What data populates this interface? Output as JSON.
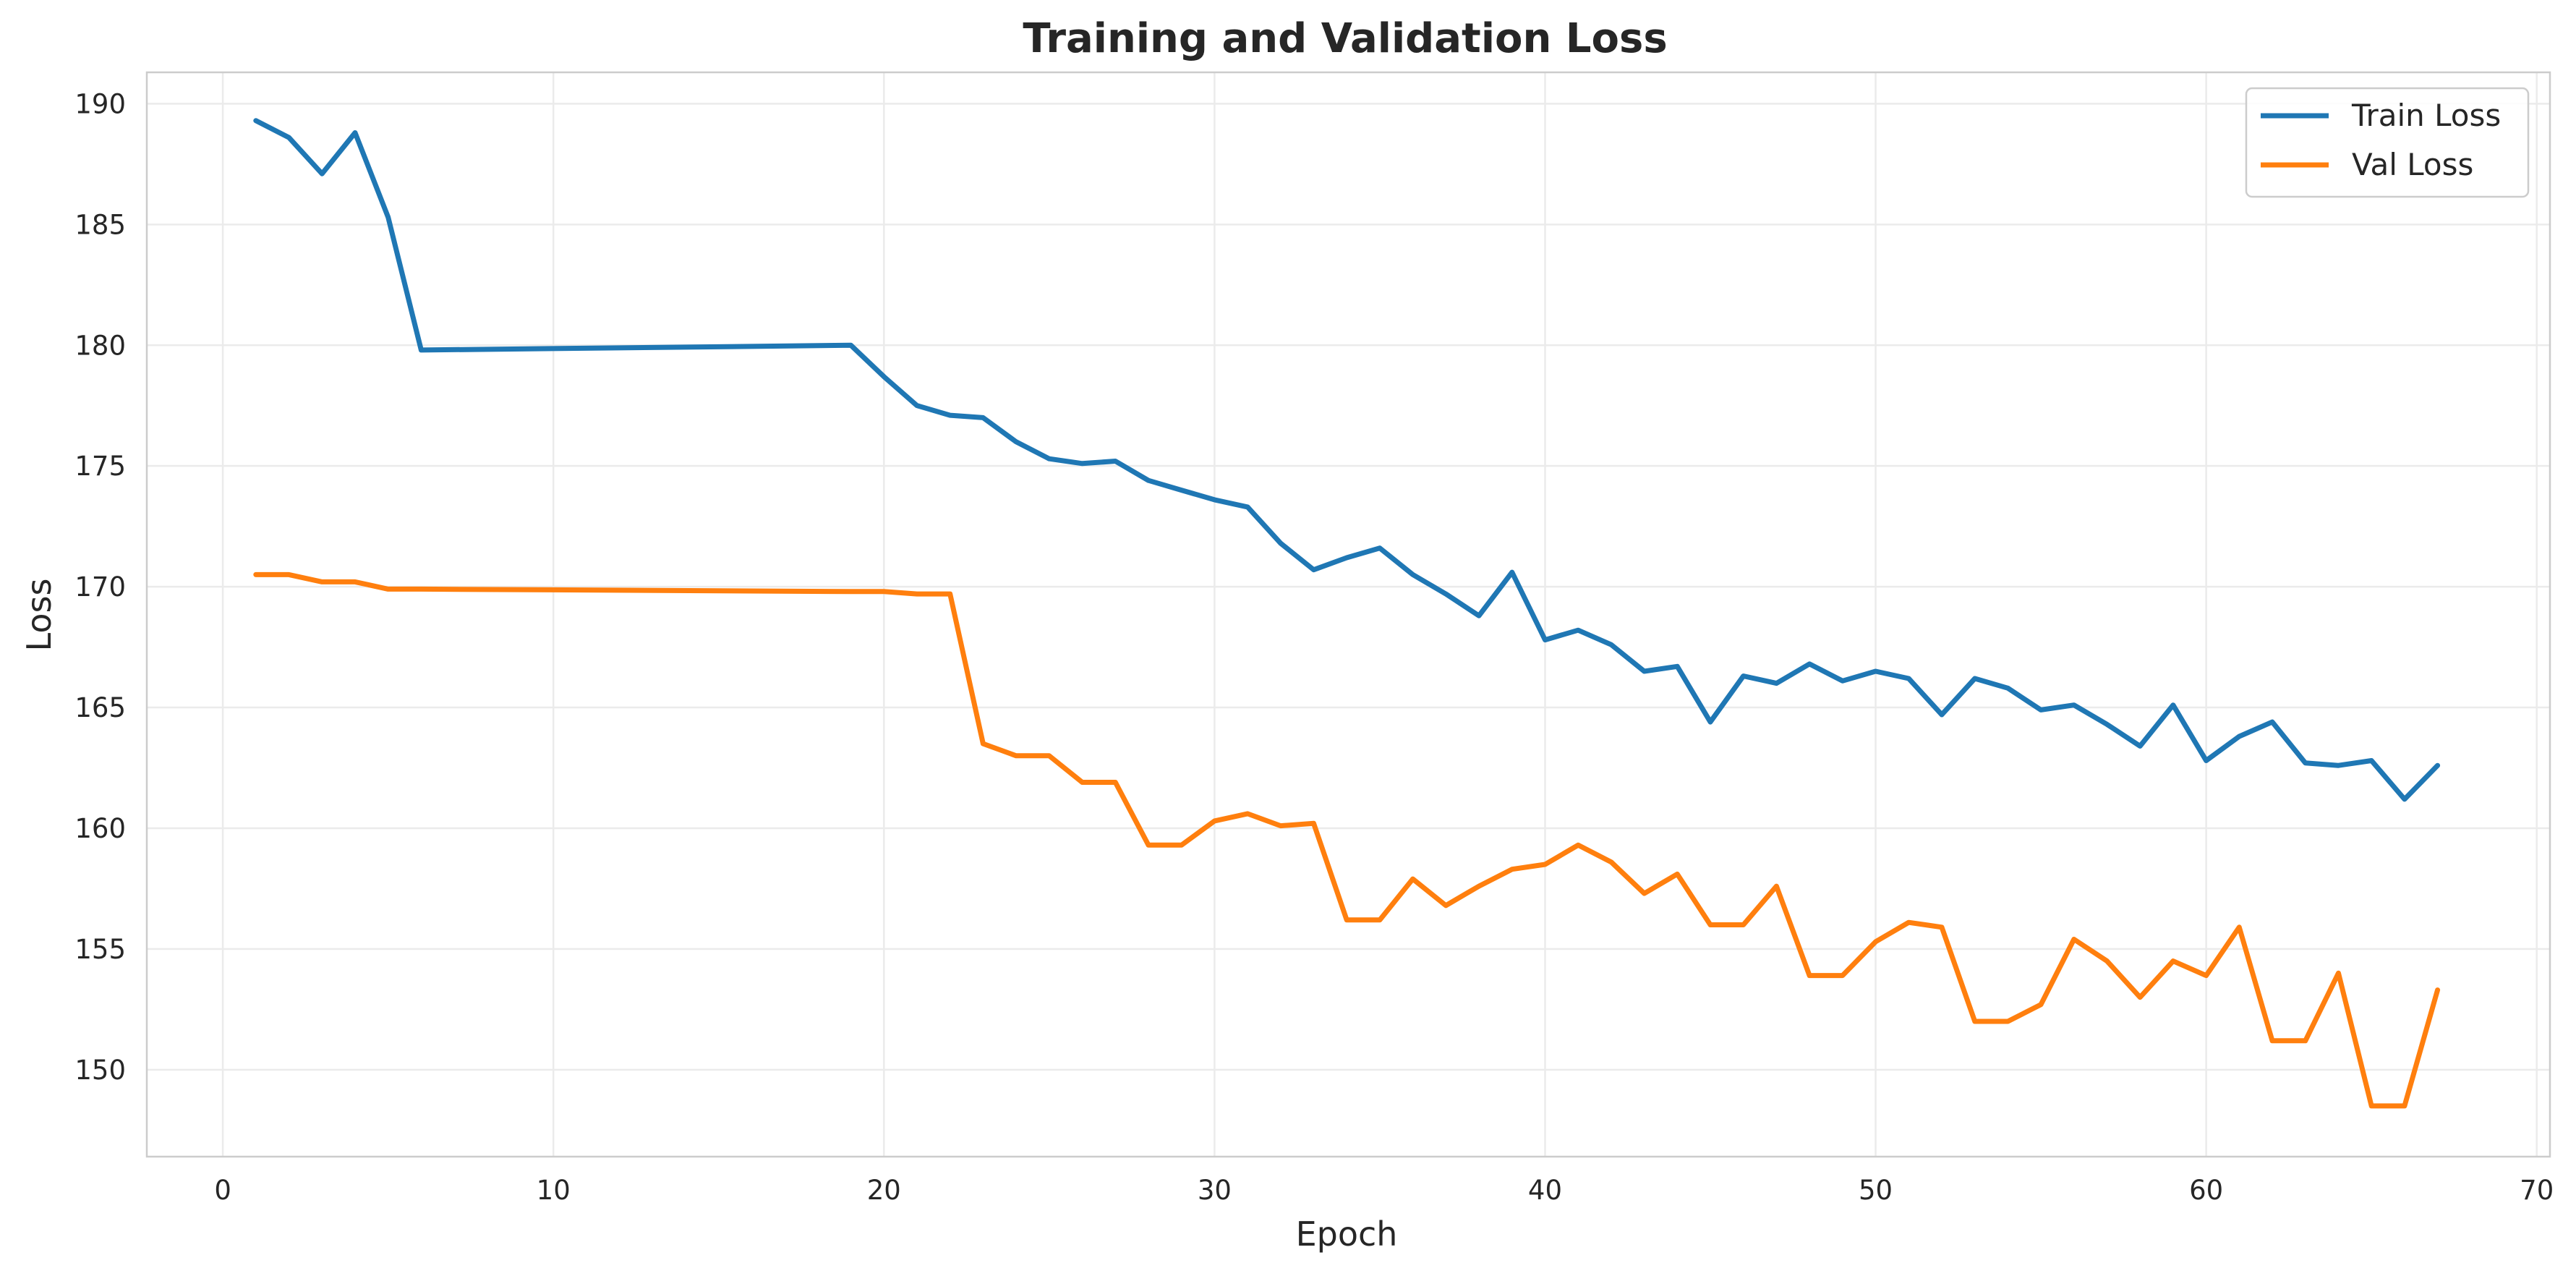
{
  "chart_data": {
    "type": "line",
    "title": "Training and Validation Loss",
    "xlabel": "Epoch",
    "ylabel": "Loss",
    "xlim": [
      -2.3,
      70.4
    ],
    "ylim": [
      146.4,
      191.3
    ],
    "xticks": [
      0,
      10,
      20,
      30,
      40,
      50,
      60,
      70
    ],
    "yticks": [
      150,
      155,
      160,
      165,
      170,
      175,
      180,
      185,
      190
    ],
    "grid": true,
    "legend_position": "top-right",
    "x": [
      1,
      2,
      3,
      4,
      5,
      6,
      19,
      20,
      21,
      22,
      23,
      24,
      25,
      26,
      27,
      28,
      29,
      30,
      31,
      32,
      33,
      34,
      35,
      36,
      37,
      38,
      39,
      40,
      41,
      42,
      43,
      44,
      45,
      46,
      47,
      48,
      49,
      50,
      51,
      52,
      53,
      54,
      55,
      56,
      57,
      58,
      59,
      60,
      61,
      62,
      63,
      64,
      65,
      66,
      67
    ],
    "series": [
      {
        "name": "Train Loss",
        "color": "#1f77b4",
        "values": [
          189.3,
          188.6,
          187.1,
          188.8,
          185.3,
          179.8,
          180.0,
          178.7,
          177.5,
          177.1,
          177.0,
          176.0,
          175.3,
          175.1,
          175.2,
          174.4,
          174.0,
          173.6,
          173.3,
          171.8,
          170.7,
          171.2,
          171.6,
          170.5,
          169.7,
          168.8,
          170.6,
          167.8,
          168.2,
          167.6,
          166.5,
          166.7,
          164.4,
          166.3,
          166.0,
          166.8,
          166.1,
          166.5,
          166.2,
          164.7,
          166.2,
          165.8,
          164.9,
          165.1,
          164.3,
          163.4,
          165.1,
          162.8,
          163.8,
          164.4,
          162.7,
          162.6,
          162.8,
          161.2,
          162.6
        ]
      },
      {
        "name": "Val Loss",
        "color": "#ff7f0e",
        "values": [
          170.5,
          170.5,
          170.2,
          170.2,
          169.9,
          169.9,
          169.8,
          169.8,
          169.7,
          169.7,
          163.5,
          163.0,
          163.0,
          161.9,
          161.9,
          159.3,
          159.3,
          160.3,
          160.6,
          160.1,
          160.2,
          156.2,
          156.2,
          157.9,
          156.8,
          157.6,
          158.3,
          158.5,
          159.3,
          158.6,
          157.3,
          158.1,
          156.0,
          156.0,
          157.6,
          153.9,
          153.9,
          155.3,
          156.1,
          155.9,
          152.0,
          152.0,
          152.7,
          155.4,
          154.5,
          153.0,
          154.5,
          153.9,
          155.9,
          151.2,
          151.2,
          154.0,
          148.5,
          148.5,
          153.3
        ]
      }
    ]
  }
}
